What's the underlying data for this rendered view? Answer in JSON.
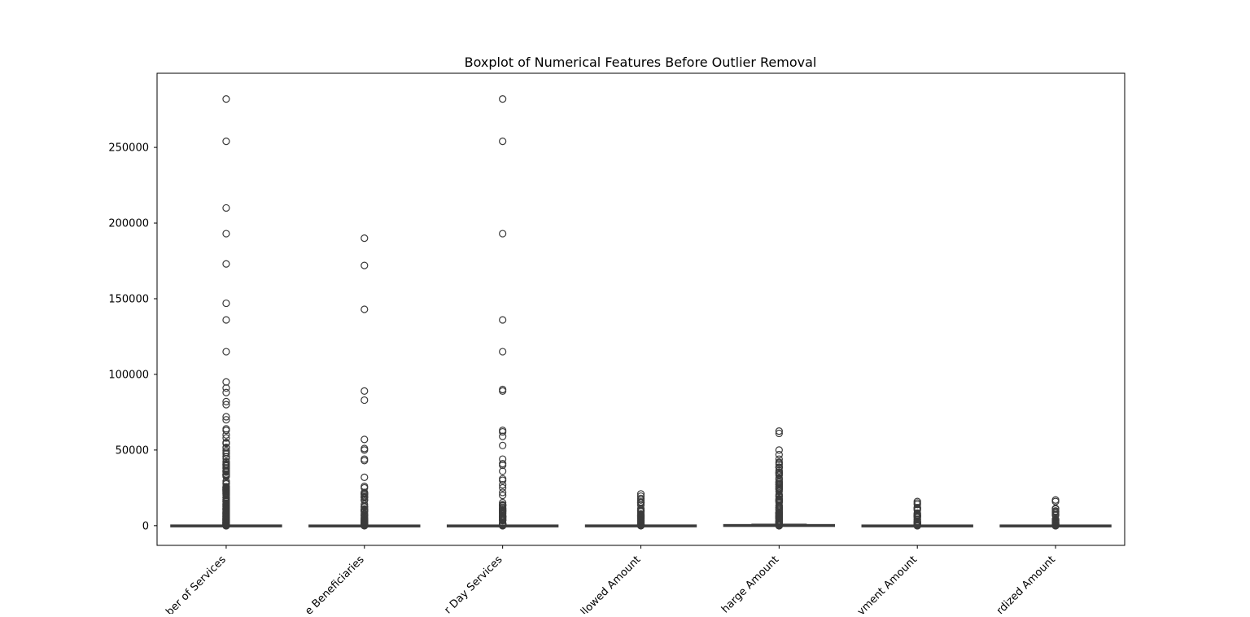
{
  "chart_data": {
    "type": "box",
    "title": "Boxplot of Numerical Features Before Outlier Removal",
    "xlabel": "",
    "ylabel": "",
    "ylim": [
      -13000,
      299000
    ],
    "yticks": [
      0,
      50000,
      100000,
      150000,
      200000,
      250000
    ],
    "ytick_labels": [
      "0",
      "50000",
      "100000",
      "150000",
      "200000",
      "250000"
    ],
    "categories": [
      "Number of Services",
      "Number of Medicare Beneficiaries",
      "Number of Distinct Medicare Beneficiary/Per Day Services",
      "Average Medicare Allowed Amount",
      "Average Submitted Charge Amount",
      "Average Medicare Payment Amount",
      "Average Medicare Standardized Amount"
    ],
    "visible_tick_labels": [
      "ber of Services",
      "e Beneficiaries",
      "r Day Services",
      "llowed Amount",
      "harge Amount",
      "yment Amount",
      "rdized Amount"
    ],
    "grid": false,
    "legend": "none",
    "colors": {
      "box_edge": "#3b3b3b",
      "box_fill": "#ffffff",
      "axes": "#000000"
    },
    "series": [
      {
        "q1": 0,
        "median": 20,
        "q3": 120,
        "whisker_low": 0,
        "whisker_high": 300,
        "dense_outliers_range": [
          0,
          55000
        ],
        "outliers": [
          282000,
          254000,
          210000,
          193000,
          173000,
          147000,
          136000,
          115000,
          95000,
          91000,
          88000,
          82000,
          80000,
          72000,
          70000,
          64000,
          63000,
          60000,
          58000,
          55000
        ]
      },
      {
        "q1": 0,
        "median": 15,
        "q3": 90,
        "whisker_low": 0,
        "whisker_high": 250,
        "dense_outliers_range": [
          0,
          22000
        ],
        "outliers": [
          190000,
          172000,
          143000,
          89000,
          83000,
          57000,
          51000,
          50000,
          44000,
          43000,
          32000,
          26000,
          25000,
          22000
        ]
      },
      {
        "q1": 0,
        "median": 15,
        "q3": 100,
        "whisker_low": 0,
        "whisker_high": 250,
        "dense_outliers_range": [
          0,
          17000
        ],
        "outliers": [
          282000,
          254000,
          193000,
          136000,
          115000,
          90000,
          89000,
          63000,
          62000,
          59000,
          53000,
          44000,
          41000,
          40000,
          36000,
          31000,
          30000,
          27000,
          25000,
          22000,
          20000
        ]
      },
      {
        "q1": 20,
        "median": 60,
        "q3": 130,
        "whisker_low": 0,
        "whisker_high": 300,
        "dense_outliers_range": [
          0,
          16000
        ],
        "outliers": [
          21000,
          19500,
          18000,
          17000
        ]
      },
      {
        "q1": 80,
        "median": 180,
        "q3": 400,
        "whisker_low": 0,
        "whisker_high": 900,
        "dense_outliers_range": [
          0,
          42000
        ],
        "outliers": [
          62500,
          61000,
          50000,
          47000,
          44000,
          42000
        ]
      },
      {
        "q1": 15,
        "median": 45,
        "q3": 100,
        "whisker_low": 0,
        "whisker_high": 230,
        "dense_outliers_range": [
          0,
          13000
        ],
        "outliers": [
          16000,
          15000,
          14000
        ]
      },
      {
        "q1": 15,
        "median": 45,
        "q3": 100,
        "whisker_low": 0,
        "whisker_high": 230,
        "dense_outliers_range": [
          0,
          12000
        ],
        "outliers": [
          17000,
          16000,
          11000
        ]
      }
    ]
  }
}
